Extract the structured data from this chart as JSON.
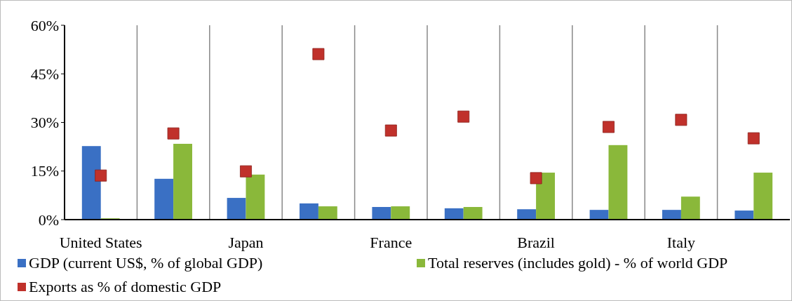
{
  "chart_data": {
    "type": "bar",
    "categories": [
      "United States",
      null,
      "Japan",
      null,
      "France",
      null,
      "Brazil",
      null,
      "Italy",
      null
    ],
    "series": [
      {
        "name": "GDP (current US$, % of global GDP)",
        "color": "#3a70c4",
        "values": [
          22.7,
          12.6,
          6.7,
          5.0,
          3.9,
          3.5,
          3.2,
          3.0,
          3.0,
          2.8
        ]
      },
      {
        "name": "Total reserves (includes gold) - % of world GDP",
        "color": "#8ab83a",
        "values": [
          0.4,
          23.4,
          13.9,
          4.1,
          4.1,
          3.9,
          14.5,
          23.0,
          7.1,
          14.5
        ]
      },
      {
        "name": "Exports as % of domestic GDP",
        "type": "scatter",
        "marker": "square",
        "color": "#c0312b",
        "values": [
          13.6,
          26.6,
          14.9,
          51.1,
          27.5,
          31.8,
          12.8,
          28.6,
          30.8,
          25.1
        ]
      }
    ],
    "ylim": [
      0,
      60
    ],
    "yticks": [
      {
        "value": 0,
        "label": "0%"
      },
      {
        "value": 15,
        "label": "15%"
      },
      {
        "value": 30,
        "label": "30%"
      },
      {
        "value": 45,
        "label": "45%"
      },
      {
        "value": 60,
        "label": "60%"
      }
    ],
    "grid": "x",
    "legend": "bottom"
  }
}
